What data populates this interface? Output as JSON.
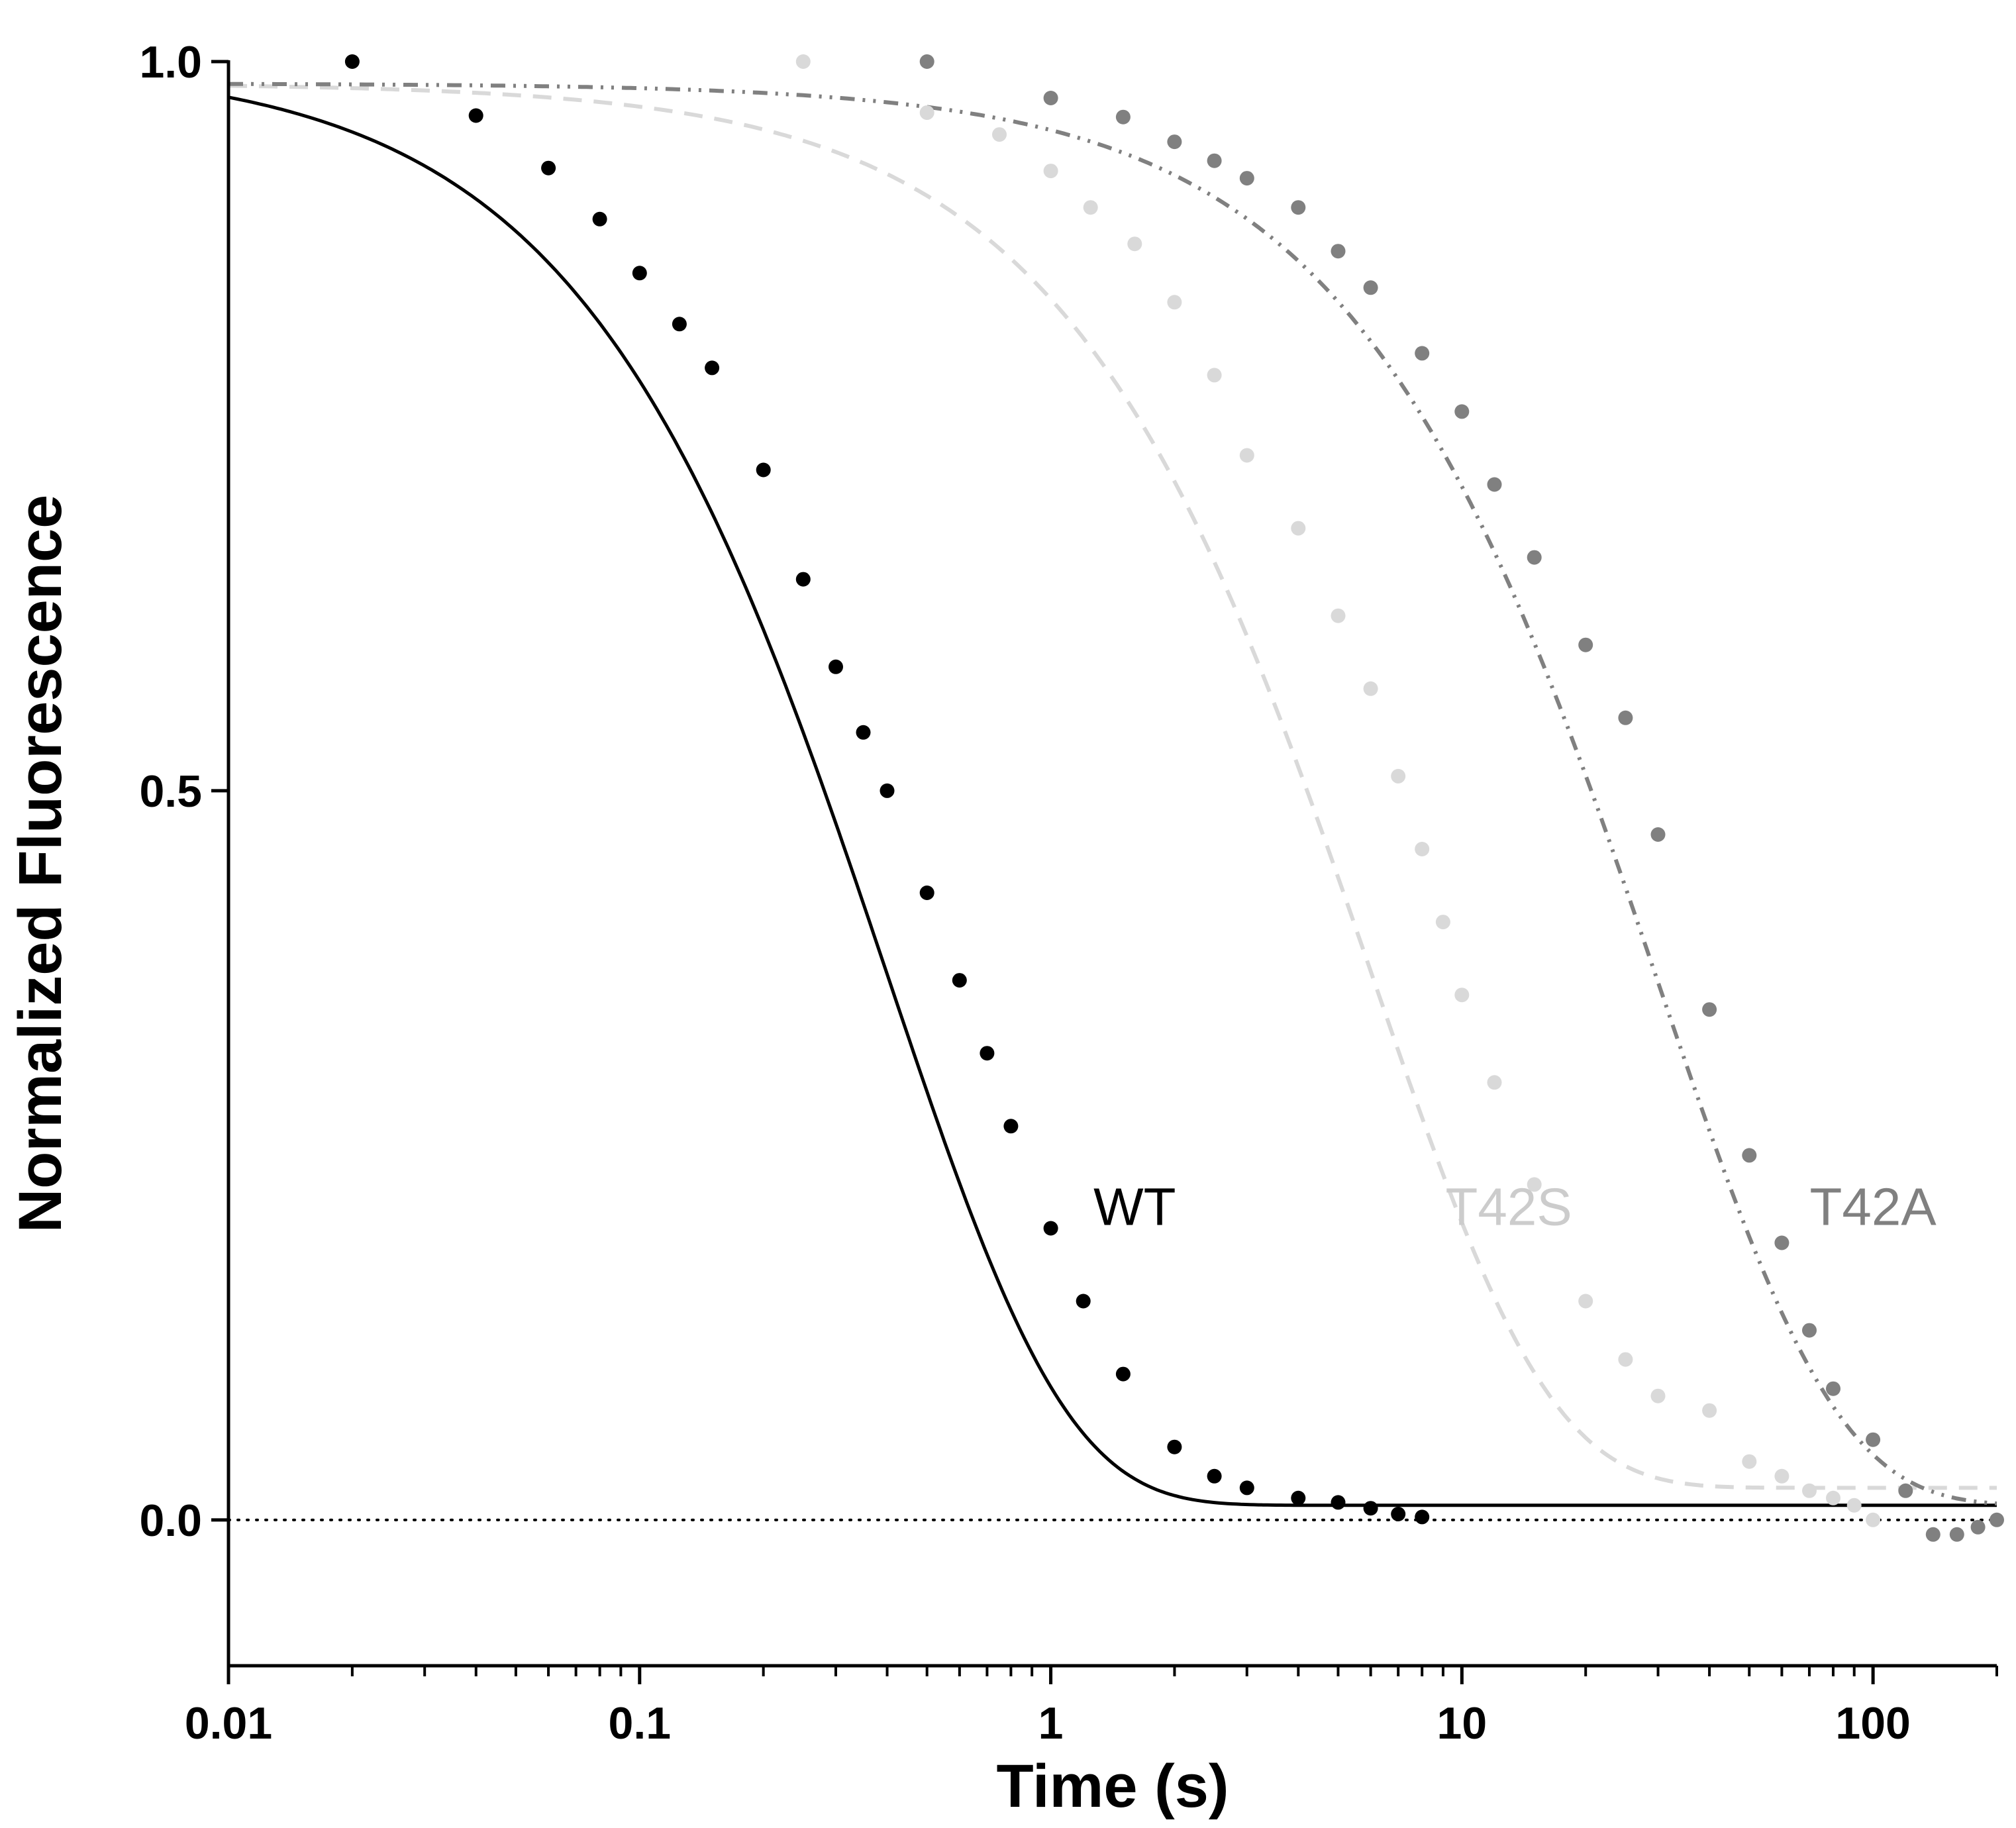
{
  "chart_data": {
    "type": "scatter",
    "title": "",
    "xlabel": "Time (s)",
    "ylabel": "Normalized Fluorescence",
    "xscale": "log",
    "xlim": [
      0.01,
      200
    ],
    "ylim": [
      -0.1,
      1.0
    ],
    "xticks": [
      {
        "value": 0.01,
        "label": "0.01"
      },
      {
        "value": 0.1,
        "label": "0.1"
      },
      {
        "value": 1,
        "label": "1"
      },
      {
        "value": 10,
        "label": "10"
      },
      {
        "value": 100,
        "label": "100"
      }
    ],
    "yticks": [
      {
        "value": 0,
        "label": "0.0"
      },
      {
        "value": 0.5,
        "label": "0.5"
      },
      {
        "value": 1,
        "label": "1.0"
      }
    ],
    "reference_line": {
      "y": 0,
      "style": "dotted"
    },
    "series": [
      {
        "name": "WT",
        "color": "#000000",
        "fit_style": "solid",
        "fit": {
          "y0": 1.0,
          "plateau": 0.01,
          "tau": 0.4
        },
        "points": [
          [
            0.02,
            1.0
          ],
          [
            0.04,
            0.963
          ],
          [
            0.06,
            0.927
          ],
          [
            0.08,
            0.892
          ],
          [
            0.1,
            0.855
          ],
          [
            0.125,
            0.82
          ],
          [
            0.15,
            0.79
          ],
          [
            0.2,
            0.72
          ],
          [
            0.25,
            0.645
          ],
          [
            0.3,
            0.585
          ],
          [
            0.35,
            0.54
          ],
          [
            0.4,
            0.5
          ],
          [
            0.5,
            0.43
          ],
          [
            0.6,
            0.37
          ],
          [
            0.7,
            0.32
          ],
          [
            0.8,
            0.27
          ],
          [
            1.0,
            0.2
          ],
          [
            1.2,
            0.15
          ],
          [
            1.5,
            0.1
          ],
          [
            2.0,
            0.05
          ],
          [
            2.5,
            0.03
          ],
          [
            3.0,
            0.022
          ],
          [
            4.0,
            0.015
          ],
          [
            5.0,
            0.012
          ],
          [
            6.0,
            0.008
          ],
          [
            7.0,
            0.004
          ],
          [
            8.0,
            0.002
          ]
        ]
      },
      {
        "name": "T42S",
        "color": "#d9d9d9",
        "fit_style": "dashed",
        "fit": {
          "y0": 0.985,
          "plateau": 0.022,
          "tau": 6.0
        },
        "points": [
          [
            0.25,
            1.0
          ],
          [
            0.5,
            0.965
          ],
          [
            0.75,
            0.95
          ],
          [
            1.0,
            0.925
          ],
          [
            1.25,
            0.9
          ],
          [
            1.6,
            0.875
          ],
          [
            2.0,
            0.835
          ],
          [
            2.5,
            0.785
          ],
          [
            3.0,
            0.73
          ],
          [
            4.0,
            0.68
          ],
          [
            5.0,
            0.62
          ],
          [
            6.0,
            0.57
          ],
          [
            7.0,
            0.51
          ],
          [
            8.0,
            0.46
          ],
          [
            9.0,
            0.41
          ],
          [
            10.0,
            0.36
          ],
          [
            12.0,
            0.3
          ],
          [
            15.0,
            0.23
          ],
          [
            20.0,
            0.15
          ],
          [
            25.0,
            0.11
          ],
          [
            30.0,
            0.085
          ],
          [
            40.0,
            0.075
          ],
          [
            50.0,
            0.04
          ],
          [
            60.0,
            0.03
          ],
          [
            70.0,
            0.02
          ],
          [
            80.0,
            0.015
          ],
          [
            90.0,
            0.01
          ],
          [
            100.0,
            0.0
          ]
        ]
      },
      {
        "name": "T42A",
        "color": "#808080",
        "fit_style": "dash-dot-dot",
        "fit": {
          "y0": 0.985,
          "plateau": 0.01,
          "tau": 30.0
        },
        "points": [
          [
            0.5,
            1.0
          ],
          [
            1.0,
            0.975
          ],
          [
            1.5,
            0.962
          ],
          [
            2.0,
            0.945
          ],
          [
            2.5,
            0.932
          ],
          [
            3.0,
            0.92
          ],
          [
            4.0,
            0.9
          ],
          [
            5.0,
            0.87
          ],
          [
            6.0,
            0.845
          ],
          [
            8.0,
            0.8
          ],
          [
            10.0,
            0.76
          ],
          [
            12.0,
            0.71
          ],
          [
            15.0,
            0.66
          ],
          [
            20.0,
            0.6
          ],
          [
            25.0,
            0.55
          ],
          [
            30.0,
            0.47
          ],
          [
            40.0,
            0.35
          ],
          [
            50.0,
            0.25
          ],
          [
            60.0,
            0.19
          ],
          [
            70.0,
            0.13
          ],
          [
            80.0,
            0.09
          ],
          [
            100.0,
            0.055
          ],
          [
            120.0,
            0.02
          ],
          [
            140.0,
            -0.01
          ],
          [
            160.0,
            -0.01
          ],
          [
            180.0,
            -0.005
          ],
          [
            200.0,
            0.0
          ]
        ]
      }
    ],
    "labels": [
      {
        "text": "WT",
        "x": 1.6,
        "y": 0.215,
        "color": "#000000"
      },
      {
        "text": "T42S",
        "x": 13.0,
        "y": 0.215,
        "color": "#cccccc"
      },
      {
        "text": "T42A",
        "x": 100.0,
        "y": 0.215,
        "color": "#808080"
      }
    ]
  }
}
